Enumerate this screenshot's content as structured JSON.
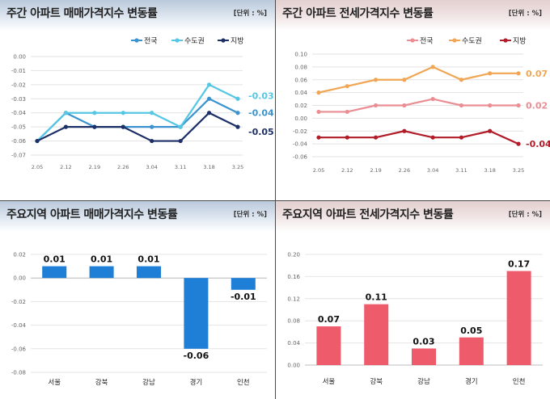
{
  "panels": [
    {
      "title": "주간 아파트 매매가격지수 변동률",
      "unit": "[단위 : %]",
      "chart_data": {
        "type": "line",
        "x": [
          "2.05",
          "2.12",
          "2.19",
          "2.26",
          "3.04",
          "3.11",
          "3.18",
          "3.25"
        ],
        "ylim": [
          -0.07,
          0.0
        ],
        "yticks": [
          0.0,
          -0.01,
          -0.02,
          -0.03,
          -0.04,
          -0.05,
          -0.06,
          -0.07
        ],
        "yticklabels": [
          "0.00",
          "-0.01",
          "-0.02",
          "-0.03",
          "-0.04",
          "-0.05",
          "-0.06",
          "-0.07"
        ],
        "series": [
          {
            "name": "전국",
            "color": "#3a93cf",
            "values": [
              -0.06,
              -0.04,
              -0.05,
              -0.05,
              -0.05,
              -0.05,
              -0.03,
              -0.04
            ],
            "end_label": "-0.04"
          },
          {
            "name": "수도권",
            "color": "#55c6e4",
            "values": [
              -0.06,
              -0.04,
              -0.04,
              -0.04,
              -0.04,
              -0.05,
              -0.02,
              -0.03
            ],
            "end_label": "-0.03"
          },
          {
            "name": "지방",
            "color": "#1c2f66",
            "values": [
              -0.06,
              -0.05,
              -0.05,
              -0.05,
              -0.06,
              -0.06,
              -0.04,
              -0.05
            ],
            "end_label": "-0.05"
          }
        ]
      }
    },
    {
      "title": "주간 아파트 전세가격지수 변동률",
      "unit": "[단위 : %]",
      "chart_data": {
        "type": "line",
        "x": [
          "2.05",
          "2.12",
          "2.19",
          "2.26",
          "3.04",
          "3.11",
          "3.18",
          "3.25"
        ],
        "ylim": [
          -0.06,
          0.1
        ],
        "yticks": [
          0.1,
          0.08,
          0.06,
          0.04,
          0.02,
          0.0,
          -0.02,
          -0.04,
          -0.06
        ],
        "yticklabels": [
          "0.10",
          "0.08",
          "0.06",
          "0.04",
          "0.02",
          "0.00",
          "-0.02",
          "-0.04",
          "-0.06"
        ],
        "series": [
          {
            "name": "전국",
            "color": "#ea8e94",
            "values": [
              0.01,
              0.01,
              0.02,
              0.02,
              0.03,
              0.02,
              0.02,
              0.02
            ],
            "end_label": "0.02"
          },
          {
            "name": "수도권",
            "color": "#f0a654",
            "values": [
              0.04,
              0.05,
              0.06,
              0.06,
              0.08,
              0.06,
              0.07,
              0.07
            ],
            "end_label": "0.07"
          },
          {
            "name": "지방",
            "color": "#b11c28",
            "values": [
              -0.03,
              -0.03,
              -0.03,
              -0.02,
              -0.03,
              -0.03,
              -0.02,
              -0.04
            ],
            "end_label": "-0.04"
          }
        ]
      }
    },
    {
      "title": "주요지역 아파트 매매가격지수 변동률",
      "unit": "[단위 : %]",
      "chart_data": {
        "type": "bar",
        "categories": [
          "서울",
          "강북",
          "강남",
          "경기",
          "인천"
        ],
        "values": [
          0.01,
          0.01,
          0.01,
          -0.06,
          -0.01
        ],
        "value_labels": [
          "0.01",
          "0.01",
          "0.01",
          "-0.06",
          "-0.01"
        ],
        "ylim": [
          -0.08,
          0.02
        ],
        "yticks": [
          0.02,
          0.0,
          -0.02,
          -0.04,
          -0.06,
          -0.08
        ],
        "yticklabels": [
          "0.02",
          "0.00",
          "-0.02",
          "-0.04",
          "-0.06",
          "-0.08"
        ],
        "color": "#1f7fd6"
      }
    },
    {
      "title": "주요지역 아파트 전세가격지수 변동률",
      "unit": "[단위 : %]",
      "chart_data": {
        "type": "bar",
        "categories": [
          "서울",
          "강북",
          "강남",
          "경기",
          "인천"
        ],
        "values": [
          0.07,
          0.11,
          0.03,
          0.05,
          0.17
        ],
        "value_labels": [
          "0.07",
          "0.11",
          "0.03",
          "0.05",
          "0.17"
        ],
        "ylim": [
          0.0,
          0.2
        ],
        "yticks": [
          0.2,
          0.16,
          0.12,
          0.08,
          0.04,
          0.0
        ],
        "yticklabels": [
          "0.20",
          "0.16",
          "0.12",
          "0.08",
          "0.04",
          "0.00"
        ],
        "color": "#ee5c6c"
      }
    }
  ]
}
